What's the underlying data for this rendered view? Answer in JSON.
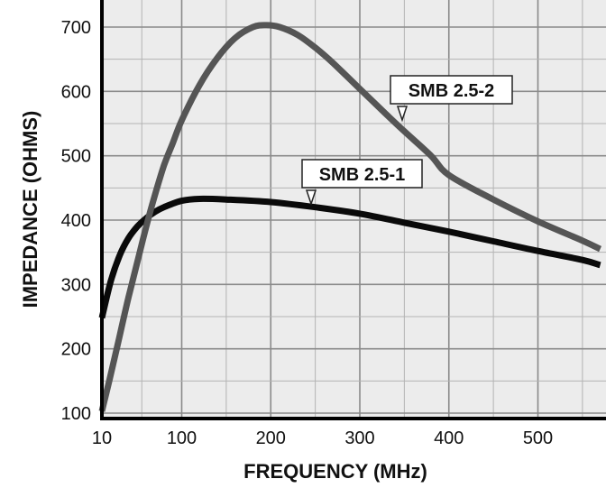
{
  "chart_data": {
    "type": "line",
    "title": "",
    "xlabel": "FREQUENCY (MHz)",
    "ylabel": "IMPEDANCE (OHMS)",
    "xlim": [
      10,
      570
    ],
    "ylim": [
      100,
      700
    ],
    "x_ticks": [
      10,
      100,
      200,
      300,
      400,
      500
    ],
    "y_ticks": [
      100,
      200,
      300,
      400,
      500,
      600,
      700
    ],
    "x_tick_labels": [
      "10",
      "100",
      "200",
      "300",
      "400",
      "500"
    ],
    "y_tick_labels": [
      "100",
      "200",
      "300",
      "400",
      "500",
      "600",
      "700"
    ],
    "grid": true,
    "legend": "none",
    "series": [
      {
        "name": "SMB 2.5-1",
        "color": "#0a0a0a",
        "x": [
          10,
          20,
          30,
          40,
          50,
          60,
          70,
          80,
          100,
          120,
          150,
          200,
          250,
          300,
          350,
          400,
          450,
          500,
          550,
          570
        ],
        "y": [
          248,
          305,
          345,
          372,
          390,
          403,
          413,
          420,
          430,
          433,
          432,
          428,
          420,
          410,
          396,
          382,
          367,
          352,
          338,
          330
        ],
        "label_text": "SMB 2.5-1",
        "label_at_x": 250
      },
      {
        "name": "SMB 2.5-2",
        "color": "#555555",
        "x": [
          10,
          20,
          30,
          40,
          50,
          60,
          70,
          80,
          90,
          100,
          120,
          140,
          160,
          180,
          195,
          210,
          230,
          250,
          270,
          300,
          330,
          350,
          380,
          400,
          450,
          500,
          550,
          570
        ],
        "y": [
          103,
          160,
          220,
          280,
          335,
          390,
          440,
          485,
          520,
          555,
          610,
          652,
          683,
          700,
          703,
          700,
          688,
          668,
          644,
          604,
          564,
          538,
          500,
          470,
          432,
          398,
          368,
          355
        ],
        "label_text": "SMB 2.5-2",
        "label_at_x": 350
      }
    ]
  }
}
